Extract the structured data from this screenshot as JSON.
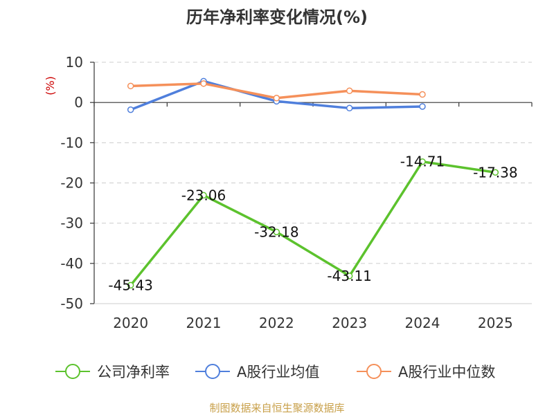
{
  "chart_data": {
    "type": "line",
    "title": "历年净利率变化情况(%)",
    "unit_label": "(%)",
    "categories": [
      "2020",
      "2021",
      "2022",
      "2023",
      "2024",
      "2025"
    ],
    "ylim": [
      -50,
      10
    ],
    "yticks": [
      10,
      0,
      -10,
      -20,
      -30,
      -40,
      -50
    ],
    "grid": "horizontal dashed",
    "legend_position": "bottom",
    "series": [
      {
        "name": "公司净利率",
        "color": "#5cc22d",
        "values": [
          -45.43,
          -23.06,
          -32.18,
          -43.11,
          -14.71,
          -17.38
        ],
        "labels": [
          "-45.43",
          "-23.06",
          "-32.18",
          "-43.11",
          "-14.71",
          "-17.38"
        ]
      },
      {
        "name": "A股行业均值",
        "color": "#4f7fdc",
        "values": [
          -1.8,
          5.3,
          0.3,
          -1.4,
          -1.0,
          null
        ]
      },
      {
        "name": "A股行业中位数",
        "color": "#f5905a",
        "values": [
          4.1,
          4.7,
          1.1,
          2.9,
          2.0,
          null
        ]
      }
    ]
  },
  "footer": {
    "source": "制图数据来自恒生聚源数据库"
  }
}
